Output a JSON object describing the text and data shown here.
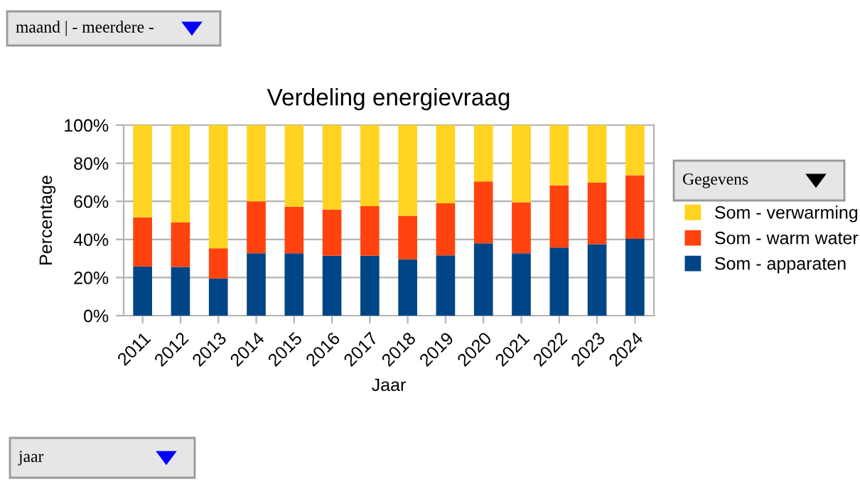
{
  "chart_data": {
    "type": "bar",
    "stacked": true,
    "title": "Verdeling energievraag",
    "xlabel": "Jaar",
    "ylabel": "Percentage",
    "categories": [
      "2011",
      "2012",
      "2013",
      "2014",
      "2015",
      "2016",
      "2017",
      "2018",
      "2019",
      "2020",
      "2021",
      "2022",
      "2023",
      "2024"
    ],
    "series": [
      {
        "name": "Som - apparaten",
        "color": "#004586",
        "values": [
          25.8,
          25.6,
          19.5,
          32.7,
          32.7,
          31.4,
          31.4,
          29.6,
          31.6,
          38.0,
          32.7,
          35.7,
          37.5,
          40.3
        ]
      },
      {
        "name": "Som - warm water",
        "color": "#ff420e",
        "values": [
          25.8,
          23.3,
          15.9,
          27.3,
          24.5,
          24.3,
          26.1,
          22.8,
          27.4,
          32.4,
          26.8,
          32.7,
          32.4,
          33.4
        ]
      },
      {
        "name": "Som - verwarming",
        "color": "#ffd320",
        "values": [
          48.4,
          51.1,
          64.6,
          40.0,
          42.8,
          44.3,
          42.5,
          47.6,
          41.0,
          29.6,
          40.5,
          31.6,
          30.1,
          26.3
        ]
      }
    ],
    "ylim": [
      0,
      100
    ],
    "yticks": [
      {
        "value": 0,
        "label": "0%"
      },
      {
        "value": 20,
        "label": "20%"
      },
      {
        "value": 40,
        "label": "40%"
      },
      {
        "value": 60,
        "label": "60%"
      },
      {
        "value": 80,
        "label": "80%"
      },
      {
        "value": 100,
        "label": "100%"
      }
    ],
    "grid": "y",
    "legend": "right",
    "annotations": [
      "maand | - meerdere -",
      "Gegevens",
      "jaar"
    ]
  }
}
